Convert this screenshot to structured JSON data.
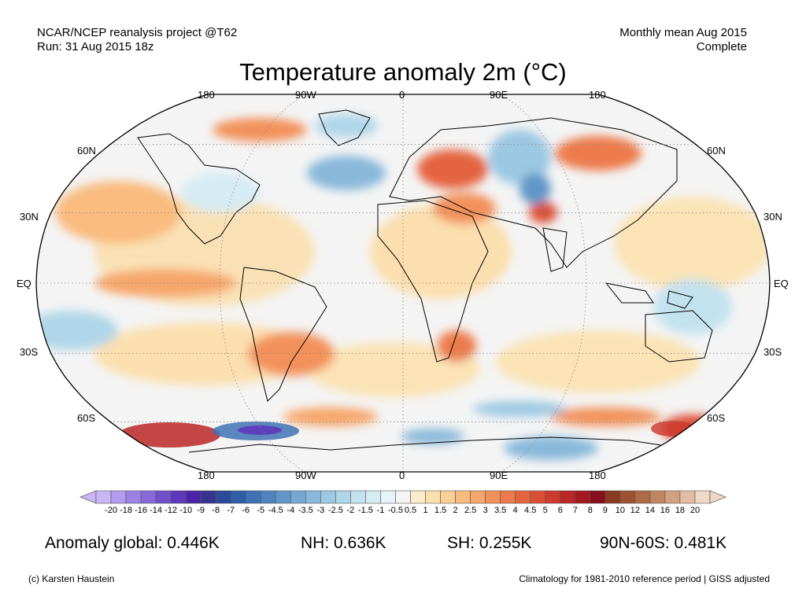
{
  "header": {
    "left_line1": "NCAR/NCEP reanalysis project @T62",
    "left_line2": "Run: 31 Aug 2015 18z",
    "right_line1": "Monthly mean Aug 2015",
    "right_line2": "Complete"
  },
  "title": "Temperature anomaly 2m (°C)",
  "map": {
    "projection": "robinson",
    "lon_labels_top": [
      "180",
      "90W",
      "0",
      "90E",
      "180"
    ],
    "lon_labels_bottom": [
      "180",
      "90W",
      "0",
      "90E",
      "180"
    ],
    "lat_labels_left": [
      "60N",
      "30N",
      "EQ",
      "30S",
      "60S"
    ],
    "lat_labels_right": [
      "60N",
      "30N",
      "EQ",
      "30S",
      "60S"
    ],
    "grid": true
  },
  "colorbar": {
    "ticks": [
      "-20",
      "-18",
      "-16",
      "-14",
      "-12",
      "-10",
      "-9",
      "-8",
      "-7",
      "-6",
      "-5",
      "-4.5",
      "-4",
      "-3.5",
      "-3",
      "-2.5",
      "-2",
      "-1.5",
      "-1",
      "-0.5",
      "0.5",
      "1",
      "1.5",
      "2",
      "2.5",
      "3",
      "3.5",
      "4",
      "4.5",
      "5",
      "6",
      "7",
      "8",
      "9",
      "10",
      "12",
      "14",
      "16",
      "18",
      "20"
    ],
    "colors": [
      "#c8b6f5",
      "#b29cee",
      "#9c82e4",
      "#8769da",
      "#7250cc",
      "#5e38bc",
      "#4b25a8",
      "#37348f",
      "#2b4a9a",
      "#2f5ea8",
      "#3f72b4",
      "#5084bf",
      "#6196c8",
      "#74a8d1",
      "#88b8da",
      "#9cc8e2",
      "#b0d6e9",
      "#c2e2ef",
      "#d5ecf4",
      "#e7f3f7",
      "#f4f4f4",
      "#fbeccb",
      "#fbdfae",
      "#fbcf95",
      "#f9bb7e",
      "#f6a66a",
      "#f2915a",
      "#ec7a4c",
      "#e46440",
      "#db4f35",
      "#cd3a2e",
      "#bb2627",
      "#a21a20",
      "#86101a",
      "#8b3a22",
      "#9c5230",
      "#ae6a44",
      "#c08561",
      "#d1a182",
      "#e2bda4",
      "#f0d8c6"
    ],
    "extend": "both"
  },
  "stats": {
    "global": "Anomaly global: 0.446K",
    "nh": "NH: 0.636K",
    "sh": "SH: 0.255K",
    "polar": "90N-60S: 0.481K"
  },
  "footer": {
    "credit": "(c) Karsten Haustein",
    "note": "Climatology for 1981-2010 reference period | GISS adjusted"
  }
}
